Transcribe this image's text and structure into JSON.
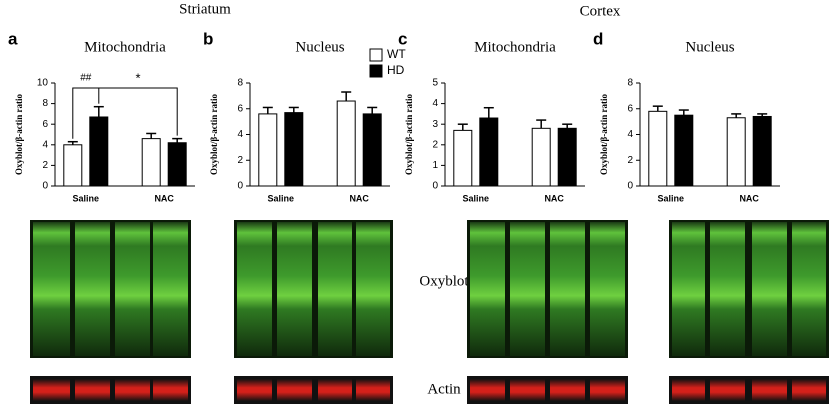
{
  "header": {
    "left": "Striatum",
    "right": "Cortex"
  },
  "blot_labels": [
    "Oxyblot",
    "Actin"
  ],
  "chart_data": [
    {
      "type": "bar",
      "panel": "a",
      "title": "Mitochondria",
      "ylabel": "Oxyblot/β-actin ratio",
      "categories": [
        "Saline",
        "NAC"
      ],
      "series": [
        {
          "color": "#ffffff",
          "values": [
            4.0,
            4.6
          ],
          "errors": [
            0.3,
            0.5
          ]
        },
        {
          "color": "#000000",
          "values": [
            6.7,
            4.2
          ],
          "errors": [
            1.0,
            0.4
          ]
        }
      ],
      "ylim": [
        0,
        10
      ],
      "yticks": [
        0,
        2,
        4,
        6,
        8,
        10
      ],
      "annotations": [
        {
          "text": "##"
        },
        {
          "text": "*"
        }
      ]
    },
    {
      "type": "bar",
      "panel": "b",
      "title": "Nucleus",
      "ylabel": "Oxyblot/β-actin ratio",
      "categories": [
        "Saline",
        "NAC"
      ],
      "series": [
        {
          "name": "WT",
          "color": "#ffffff",
          "values": [
            5.6,
            6.6
          ],
          "errors": [
            0.5,
            0.7
          ]
        },
        {
          "name": "HD",
          "color": "#000000",
          "values": [
            5.7,
            5.6
          ],
          "errors": [
            0.4,
            0.5
          ]
        }
      ],
      "ylim": [
        0,
        8
      ],
      "yticks": [
        0,
        2,
        4,
        6,
        8
      ],
      "legend": "upper right"
    },
    {
      "type": "bar",
      "panel": "c",
      "title": "Mitochondria",
      "ylabel": "Oxyblot/β-actin ratio",
      "categories": [
        "Saline",
        "NAC"
      ],
      "series": [
        {
          "color": "#ffffff",
          "values": [
            2.7,
            2.8
          ],
          "errors": [
            0.3,
            0.4
          ]
        },
        {
          "color": "#000000",
          "values": [
            3.3,
            2.8
          ],
          "errors": [
            0.5,
            0.2
          ]
        }
      ],
      "ylim": [
        0,
        5
      ],
      "yticks": [
        0,
        1,
        2,
        3,
        4,
        5
      ]
    },
    {
      "type": "bar",
      "panel": "d",
      "title": "Nucleus",
      "ylabel": "Oxyblot/β-actin ratio",
      "categories": [
        "Saline",
        "NAC"
      ],
      "series": [
        {
          "color": "#ffffff",
          "values": [
            5.8,
            5.3
          ],
          "errors": [
            0.4,
            0.3
          ]
        },
        {
          "color": "#000000",
          "values": [
            5.5,
            5.4
          ],
          "errors": [
            0.4,
            0.2
          ]
        }
      ],
      "ylim": [
        0,
        8
      ],
      "yticks": [
        0,
        2,
        4,
        6,
        8
      ]
    }
  ]
}
